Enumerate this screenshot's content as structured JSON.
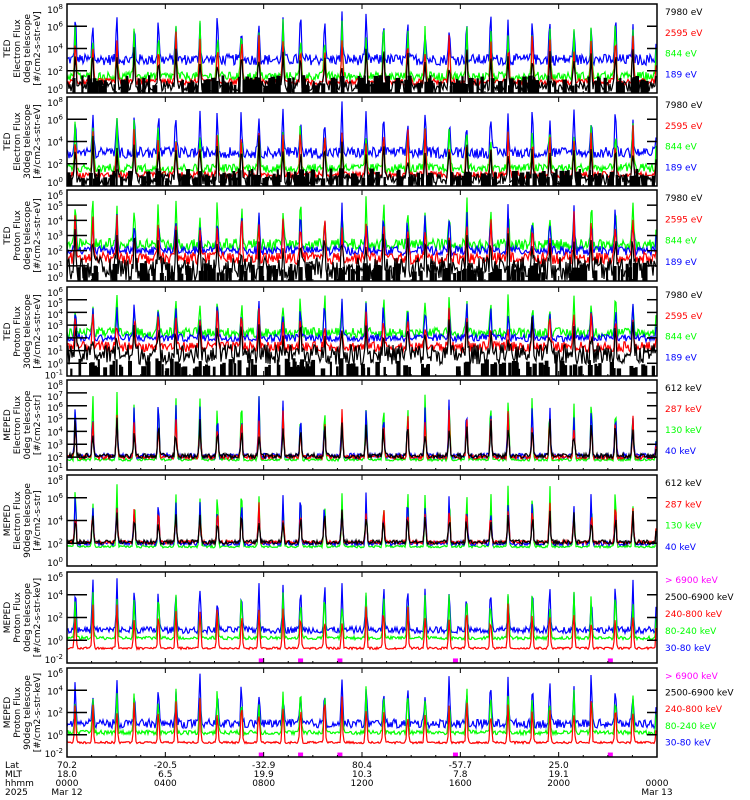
{
  "chart_data": {
    "type": "line",
    "title": "",
    "panels": [
      {
        "ylabel": [
          "TED",
          "Electron Flux",
          "0deg telescope",
          "[#/cm2-s-str-eV]"
        ],
        "ylim_exp": [
          0,
          8
        ],
        "yticks": [
          {
            "m": "10",
            "e": "8"
          },
          {
            "m": "10",
            "e": "6"
          },
          {
            "m": "10",
            "e": "4"
          },
          {
            "m": "10",
            "e": "2"
          },
          {
            "m": "10",
            "e": "0"
          }
        ],
        "ytick_exps": [
          8,
          6,
          4,
          2,
          0
        ],
        "legend": [
          {
            "label": "7980 eV",
            "color": "#000000"
          },
          {
            "label": "2595 eV",
            "color": "#ff0000"
          },
          {
            "label": "844 eV",
            "color": "#00ff00"
          },
          {
            "label": "189 eV",
            "color": "#0000ff"
          }
        ],
        "baselines": [
          {
            "color": "#0000ff",
            "level": 3.0,
            "amp": 0.5
          },
          {
            "color": "#00ff00",
            "level": 1.5,
            "amp": 0.4
          },
          {
            "color": "#ff0000",
            "level": 1.0,
            "amp": 0.3
          },
          {
            "color": "#000000",
            "level": 0.6,
            "amp": 0.5
          }
        ]
      },
      {
        "ylabel": [
          "TED",
          "Electron Flux",
          "30deg telescope",
          "[#/cm2-s-str-eV]"
        ],
        "ylim_exp": [
          0,
          8
        ],
        "yticks": [
          {
            "m": "10",
            "e": "8"
          },
          {
            "m": "10",
            "e": "6"
          },
          {
            "m": "10",
            "e": "4"
          },
          {
            "m": "10",
            "e": "2"
          },
          {
            "m": "10",
            "e": "0"
          }
        ],
        "ytick_exps": [
          8,
          6,
          4,
          2,
          0
        ],
        "legend": [
          {
            "label": "7980 eV",
            "color": "#000000"
          },
          {
            "label": "2595 eV",
            "color": "#ff0000"
          },
          {
            "label": "844 eV",
            "color": "#00ff00"
          },
          {
            "label": "189 eV",
            "color": "#0000ff"
          }
        ],
        "baselines": [
          {
            "color": "#0000ff",
            "level": 3.0,
            "amp": 0.5
          },
          {
            "color": "#00ff00",
            "level": 1.6,
            "amp": 0.4
          },
          {
            "color": "#ff0000",
            "level": 1.0,
            "amp": 0.3
          },
          {
            "color": "#000000",
            "level": 0.6,
            "amp": 0.5
          }
        ]
      },
      {
        "ylabel": [
          "TED",
          "Proton Flux",
          "0deg telescope",
          "[#/cm2-s-str-eV]"
        ],
        "ylim_exp": [
          0,
          6
        ],
        "yticks": [
          {
            "m": "10",
            "e": "6"
          },
          {
            "m": "10",
            "e": "5"
          },
          {
            "m": "10",
            "e": "4"
          },
          {
            "m": "10",
            "e": "3"
          },
          {
            "m": "10",
            "e": "2"
          },
          {
            "m": "10",
            "e": "1"
          },
          {
            "m": "10",
            "e": "0"
          }
        ],
        "ytick_exps": [
          6,
          5,
          4,
          3,
          2,
          1,
          0
        ],
        "legend": [
          {
            "label": "7980 eV",
            "color": "#000000"
          },
          {
            "label": "2595 eV",
            "color": "#ff0000"
          },
          {
            "label": "844 eV",
            "color": "#00ff00"
          },
          {
            "label": "189 eV",
            "color": "#0000ff"
          }
        ],
        "baselines": [
          {
            "color": "#00ff00",
            "level": 2.4,
            "amp": 0.4
          },
          {
            "color": "#0000ff",
            "level": 2.0,
            "amp": 0.3
          },
          {
            "color": "#ff0000",
            "level": 1.5,
            "amp": 0.4
          },
          {
            "color": "#000000",
            "level": 0.8,
            "amp": 0.8
          }
        ]
      },
      {
        "ylabel": [
          "TED",
          "Proton Flux",
          "30deg telescope",
          "[#/cm2-s-str-eV]"
        ],
        "ylim_exp": [
          -1,
          6
        ],
        "yticks": [
          {
            "m": "10",
            "e": "6"
          },
          {
            "m": "10",
            "e": "5"
          },
          {
            "m": "10",
            "e": "4"
          },
          {
            "m": "10",
            "e": "3"
          },
          {
            "m": "10",
            "e": "2"
          },
          {
            "m": "10",
            "e": "1"
          },
          {
            "m": "10",
            "e": "0"
          },
          {
            "m": "10",
            "e": "-1"
          }
        ],
        "ytick_exps": [
          6,
          5,
          4,
          3,
          2,
          1,
          0,
          -1
        ],
        "legend": [
          {
            "label": "7980 eV",
            "color": "#000000"
          },
          {
            "label": "2595 eV",
            "color": "#ff0000"
          },
          {
            "label": "844 eV",
            "color": "#00ff00"
          },
          {
            "label": "189 eV",
            "color": "#0000ff"
          }
        ],
        "baselines": [
          {
            "color": "#00ff00",
            "level": 2.4,
            "amp": 0.4
          },
          {
            "color": "#0000ff",
            "level": 2.0,
            "amp": 0.3
          },
          {
            "color": "#ff0000",
            "level": 1.3,
            "amp": 0.4
          },
          {
            "color": "#000000",
            "level": 0.7,
            "amp": 0.8
          }
        ]
      },
      {
        "ylabel": [
          "MEPED",
          "Electron Flux",
          "0deg telescope",
          "[#/cm2-s-str]"
        ],
        "ylim_exp": [
          1,
          8
        ],
        "yticks": [
          {
            "m": "10",
            "e": "8"
          },
          {
            "m": "10",
            "e": "7"
          },
          {
            "m": "10",
            "e": "6"
          },
          {
            "m": "10",
            "e": "5"
          },
          {
            "m": "10",
            "e": "4"
          },
          {
            "m": "10",
            "e": "3"
          },
          {
            "m": "10",
            "e": "2"
          },
          {
            "m": "10",
            "e": "1"
          }
        ],
        "ytick_exps": [
          8,
          7,
          6,
          5,
          4,
          3,
          2,
          1
        ],
        "legend": [
          {
            "label": "612 keV",
            "color": "#000000"
          },
          {
            "label": "287 keV",
            "color": "#ff0000"
          },
          {
            "label": "130 keV",
            "color": "#00ff00"
          },
          {
            "label": "40 keV",
            "color": "#0000ff"
          }
        ],
        "baselines": [
          {
            "color": "#00ff00",
            "level": 1.8,
            "amp": 0.1
          },
          {
            "color": "#0000ff",
            "level": 2.1,
            "amp": 0.2
          },
          {
            "color": "#ff0000",
            "level": 2.0,
            "amp": 0.15
          },
          {
            "color": "#000000",
            "level": 2.1,
            "amp": 0.2
          }
        ]
      },
      {
        "ylabel": [
          "MEPED",
          "Electron Flux",
          "90deg telescope",
          "[#/cm2-s-str]"
        ],
        "ylim_exp": [
          0,
          8
        ],
        "yticks": [
          {
            "m": "10",
            "e": "8"
          },
          {
            "m": "10",
            "e": "6"
          },
          {
            "m": "10",
            "e": "4"
          },
          {
            "m": "10",
            "e": "2"
          },
          {
            "m": "10",
            "e": "0"
          }
        ],
        "ytick_exps": [
          8,
          6,
          4,
          2,
          0
        ],
        "legend": [
          {
            "label": "612 keV",
            "color": "#000000"
          },
          {
            "label": "287 keV",
            "color": "#ff0000"
          },
          {
            "label": "130 keV",
            "color": "#00ff00"
          },
          {
            "label": "40 keV",
            "color": "#0000ff"
          }
        ],
        "baselines": [
          {
            "color": "#00ff00",
            "level": 1.7,
            "amp": 0.1
          },
          {
            "color": "#0000ff",
            "level": 2.0,
            "amp": 0.2
          },
          {
            "color": "#ff0000",
            "level": 2.1,
            "amp": 0.15
          },
          {
            "color": "#000000",
            "level": 2.1,
            "amp": 0.2
          }
        ]
      },
      {
        "ylabel": [
          "MEPED",
          "Proton Flux",
          "0deg telescope",
          "[#/cm2-s-str-keV]"
        ],
        "ylim_exp": [
          -2,
          6
        ],
        "yticks": [
          {
            "m": "10",
            "e": "6"
          },
          {
            "m": "10",
            "e": "4"
          },
          {
            "m": "10",
            "e": "2"
          },
          {
            "m": "10",
            "e": "0"
          },
          {
            "m": "10",
            "e": "-2"
          }
        ],
        "ytick_exps": [
          6,
          4,
          2,
          0,
          -2
        ],
        "legend": [
          {
            "label": "> 6900 keV",
            "color": "#ff00ff"
          },
          {
            "label": "2500-6900 keV",
            "color": "#000000"
          },
          {
            "label": "240-800 keV",
            "color": "#ff0000"
          },
          {
            "label": "80-240 keV",
            "color": "#00ff00"
          },
          {
            "label": "30-80 keV",
            "color": "#0000ff"
          }
        ],
        "baselines": [
          {
            "color": "#0000ff",
            "level": 0.9,
            "amp": 0.3
          },
          {
            "color": "#00ff00",
            "level": 0.2,
            "amp": 0.15
          },
          {
            "color": "#ff0000",
            "level": -0.7,
            "amp": 0.1
          }
        ]
      },
      {
        "ylabel": [
          "MEPED",
          "Proton Flux",
          "90deg telescope",
          "[#/cm2-s-str-keV]"
        ],
        "ylim_exp": [
          -2,
          6
        ],
        "yticks": [
          {
            "m": "10",
            "e": "6"
          },
          {
            "m": "10",
            "e": "4"
          },
          {
            "m": "10",
            "e": "2"
          },
          {
            "m": "10",
            "e": "0"
          },
          {
            "m": "10",
            "e": "-2"
          }
        ],
        "ytick_exps": [
          6,
          4,
          2,
          0,
          -2
        ],
        "legend": [
          {
            "label": "> 6900 keV",
            "color": "#ff00ff"
          },
          {
            "label": "2500-6900 keV",
            "color": "#000000"
          },
          {
            "label": "240-800 keV",
            "color": "#ff0000"
          },
          {
            "label": "80-240 keV",
            "color": "#00ff00"
          },
          {
            "label": "30-80 keV",
            "color": "#0000ff"
          }
        ],
        "baselines": [
          {
            "color": "#0000ff",
            "level": 1.0,
            "amp": 0.4
          },
          {
            "color": "#00ff00",
            "level": 0.2,
            "amp": 0.2
          },
          {
            "color": "#ff0000",
            "level": -0.7,
            "amp": 0.1
          }
        ]
      }
    ],
    "x_axis": {
      "row_labels": [
        "Lat",
        "MLT",
        "hhmm",
        "2025"
      ],
      "ticks": [
        {
          "hours": 0,
          "lat": "70.2",
          "mlt": "18.0",
          "hhmm": "0000",
          "date": "Mar 12"
        },
        {
          "hours": 4,
          "lat": "-20.5",
          "mlt": "6.5",
          "hhmm": "0400",
          "date": ""
        },
        {
          "hours": 8,
          "lat": "-32.9",
          "mlt": "19.9",
          "hhmm": "0800",
          "date": ""
        },
        {
          "hours": 12,
          "lat": "80.4",
          "mlt": "10.3",
          "hhmm": "1200",
          "date": ""
        },
        {
          "hours": 16,
          "lat": "-57.7",
          "mlt": "7.8",
          "hhmm": "1600",
          "date": ""
        },
        {
          "hours": 20,
          "lat": "25.0",
          "mlt": "19.1",
          "hhmm": "2000",
          "date": ""
        },
        {
          "hours": 24,
          "lat": "",
          "mlt": "",
          "hhmm": "0000",
          "date": "Mar 13"
        }
      ],
      "xlim_hours": [
        0,
        24
      ],
      "orbit_period_hours": 1.69
    }
  }
}
